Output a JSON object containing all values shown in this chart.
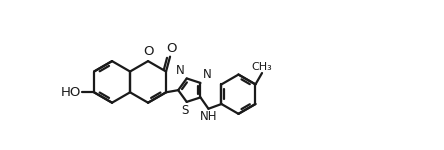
{
  "bg_color": "#ffffff",
  "line_color": "#1a1a1a",
  "line_width": 1.6,
  "font_size": 8.5,
  "figsize": [
    4.44,
    1.5
  ],
  "dpi": 100,
  "xlim": [
    0,
    4.44
  ],
  "ylim": [
    0,
    1.5
  ]
}
